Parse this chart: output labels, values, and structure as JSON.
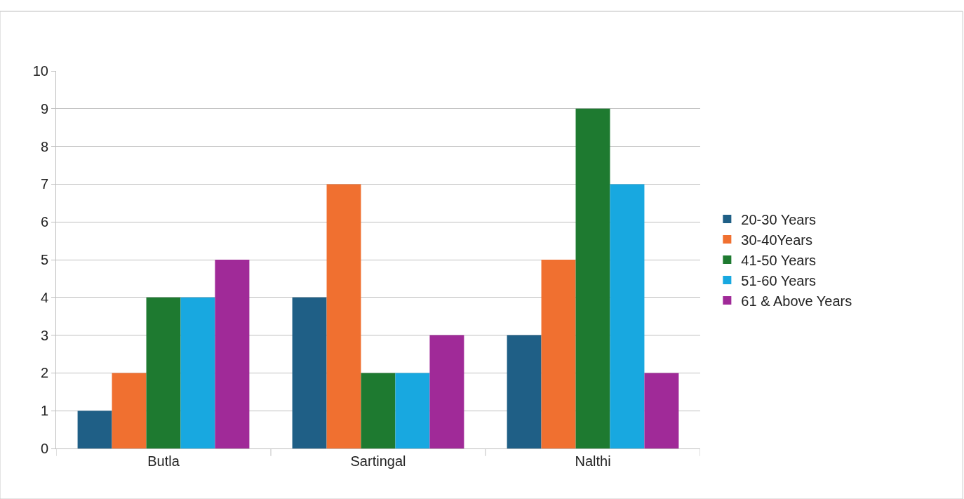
{
  "chart_data": {
    "type": "bar",
    "categories": [
      "Butla",
      "Sartingal",
      "Nalthi"
    ],
    "series": [
      {
        "name": "20-30 Years",
        "color": "#1f5f86",
        "values": [
          1,
          4,
          3
        ]
      },
      {
        "name": "30-40Years",
        "color": "#f07030",
        "values": [
          2,
          7,
          5
        ]
      },
      {
        "name": "41-50 Years",
        "color": "#1e7a30",
        "values": [
          4,
          2,
          9
        ]
      },
      {
        "name": "51-60 Years",
        "color": "#18a8e0",
        "values": [
          4,
          2,
          7
        ]
      },
      {
        "name": "61 & Above Years",
        "color": "#a02a98",
        "values": [
          5,
          3,
          2
        ]
      }
    ],
    "ylim": [
      0,
      10
    ],
    "yticks": [
      0,
      1,
      2,
      3,
      4,
      5,
      6,
      7,
      8,
      9,
      10
    ],
    "grid": "y",
    "legend": "right"
  }
}
